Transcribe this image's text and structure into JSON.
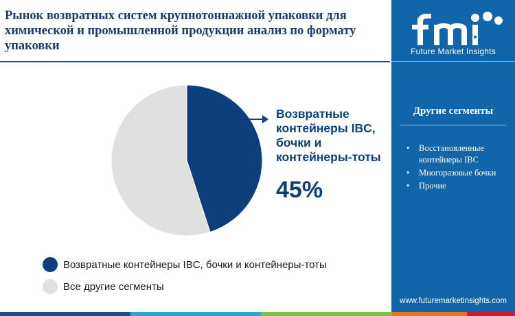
{
  "title": "Рынок возвратных систем крупнотоннажной упаковки для химической и промышленной продукции анализ по формату упаковки",
  "chart_data": {
    "type": "pie",
    "title": "Рынок возвратных систем крупнотоннажной упаковки для химической и промышленной продукции анализ по формату упаковки",
    "slices": [
      {
        "label": "Возвратные контейнеры IBC, бочки и контейнеры-тоты",
        "value": 45,
        "color": "#0d3f7d"
      },
      {
        "label": "Все другие сегменты",
        "value": 55,
        "color": "#e0e0e0"
      }
    ],
    "legend_position": "bottom-left"
  },
  "callout": {
    "label": "Возвратные контейнеры IBC, бочки и контейнеры-тоты",
    "value": "45%"
  },
  "legend": [
    {
      "label": "Возвратные контейнеры IBC, бочки и контейнеры-тоты",
      "color": "#0d3f7d"
    },
    {
      "label": "Все другие сегменты",
      "color": "#e0e0e0"
    }
  ],
  "sidebar": {
    "logo_text": "fmi",
    "logo_tagline": "Future Market Insights",
    "heading": "Другие сегменты",
    "items": [
      "Восстановленные контейнеры IBC",
      "Многоразовые бочки",
      "Прочие"
    ],
    "bullet": "•",
    "website": "www.futuremarketinsights.com",
    "background": "#1265a8"
  },
  "bottom_bar_colors": [
    "#1b4f8c",
    "#2ea3dc",
    "#7dc242",
    "#e8731a",
    "#c81e3a"
  ]
}
